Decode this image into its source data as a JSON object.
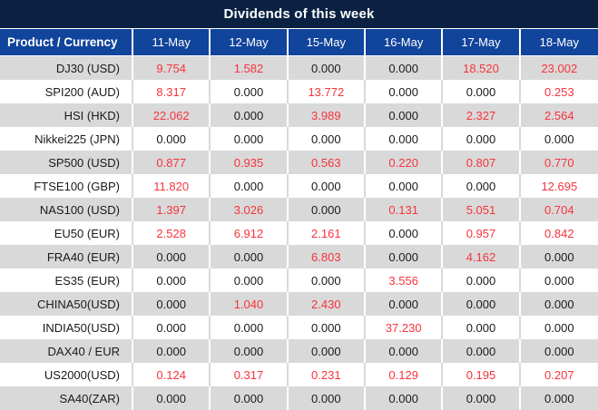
{
  "title": "Dividends of this week",
  "colors": {
    "title_bg": "#0A2142",
    "header_bg": "#11449B",
    "row_alt_bg": "#D9D9D9",
    "value_red": "#F8333C",
    "value_black": "#1A1A1A"
  },
  "chart_data": {
    "type": "table",
    "title": "Dividends of this week",
    "columns": [
      "Product / Currency",
      "11-May",
      "12-May",
      "15-May",
      "16-May",
      "17-May",
      "18-May"
    ],
    "rows": [
      {
        "product": "DJ30 (USD)",
        "values": [
          {
            "v": "9.754",
            "red": true
          },
          {
            "v": "1.582",
            "red": true
          },
          {
            "v": "0.000",
            "red": false
          },
          {
            "v": "0.000",
            "red": false
          },
          {
            "v": "18.520",
            "red": true
          },
          {
            "v": "23.002",
            "red": true
          }
        ]
      },
      {
        "product": "SPI200 (AUD)",
        "values": [
          {
            "v": "8.317",
            "red": true
          },
          {
            "v": "0.000",
            "red": false
          },
          {
            "v": "13.772",
            "red": true
          },
          {
            "v": "0.000",
            "red": false
          },
          {
            "v": "0.000",
            "red": false
          },
          {
            "v": "0.253",
            "red": true
          }
        ]
      },
      {
        "product": "HSI (HKD)",
        "values": [
          {
            "v": "22.062",
            "red": true
          },
          {
            "v": "0.000",
            "red": false
          },
          {
            "v": "3.989",
            "red": true
          },
          {
            "v": "0.000",
            "red": false
          },
          {
            "v": "2.327",
            "red": true
          },
          {
            "v": "2.564",
            "red": true
          }
        ]
      },
      {
        "product": "Nikkei225 (JPN)",
        "values": [
          {
            "v": "0.000",
            "red": false
          },
          {
            "v": "0.000",
            "red": false
          },
          {
            "v": "0.000",
            "red": false
          },
          {
            "v": "0.000",
            "red": false
          },
          {
            "v": "0.000",
            "red": false
          },
          {
            "v": "0.000",
            "red": false
          }
        ]
      },
      {
        "product": "SP500 (USD)",
        "values": [
          {
            "v": "0.877",
            "red": true
          },
          {
            "v": "0.935",
            "red": true
          },
          {
            "v": "0.563",
            "red": true
          },
          {
            "v": "0.220",
            "red": true
          },
          {
            "v": "0.807",
            "red": true
          },
          {
            "v": "0.770",
            "red": true
          }
        ]
      },
      {
        "product": "FTSE100 (GBP)",
        "values": [
          {
            "v": "11.820",
            "red": true
          },
          {
            "v": "0.000",
            "red": false
          },
          {
            "v": "0.000",
            "red": false
          },
          {
            "v": "0.000",
            "red": false
          },
          {
            "v": "0.000",
            "red": false
          },
          {
            "v": "12.695",
            "red": true
          }
        ]
      },
      {
        "product": "NAS100 (USD)",
        "values": [
          {
            "v": "1.397",
            "red": true
          },
          {
            "v": "3.026",
            "red": true
          },
          {
            "v": "0.000",
            "red": false
          },
          {
            "v": "0.131",
            "red": true
          },
          {
            "v": "5.051",
            "red": true
          },
          {
            "v": "0.704",
            "red": true
          }
        ]
      },
      {
        "product": "EU50 (EUR)",
        "values": [
          {
            "v": "2.528",
            "red": true
          },
          {
            "v": "6.912",
            "red": true
          },
          {
            "v": "2.161",
            "red": true
          },
          {
            "v": "0.000",
            "red": false
          },
          {
            "v": "0.957",
            "red": true
          },
          {
            "v": "0.842",
            "red": true
          }
        ]
      },
      {
        "product": "FRA40 (EUR)",
        "values": [
          {
            "v": "0.000",
            "red": false
          },
          {
            "v": "0.000",
            "red": false
          },
          {
            "v": "6.803",
            "red": true
          },
          {
            "v": "0.000",
            "red": false
          },
          {
            "v": "4.162",
            "red": true
          },
          {
            "v": "0.000",
            "red": false
          }
        ]
      },
      {
        "product": "ES35 (EUR)",
        "values": [
          {
            "v": "0.000",
            "red": false
          },
          {
            "v": "0.000",
            "red": false
          },
          {
            "v": "0.000",
            "red": false
          },
          {
            "v": "3.556",
            "red": true
          },
          {
            "v": "0.000",
            "red": false
          },
          {
            "v": "0.000",
            "red": false
          }
        ]
      },
      {
        "product": "CHINA50(USD)",
        "values": [
          {
            "v": "0.000",
            "red": false
          },
          {
            "v": "1.040",
            "red": true
          },
          {
            "v": "2.430",
            "red": true
          },
          {
            "v": "0.000",
            "red": false
          },
          {
            "v": "0.000",
            "red": false
          },
          {
            "v": "0.000",
            "red": false
          }
        ]
      },
      {
        "product": "INDIA50(USD)",
        "values": [
          {
            "v": "0.000",
            "red": false
          },
          {
            "v": "0.000",
            "red": false
          },
          {
            "v": "0.000",
            "red": false
          },
          {
            "v": "37.230",
            "red": true
          },
          {
            "v": "0.000",
            "red": false
          },
          {
            "v": "0.000",
            "red": false
          }
        ]
      },
      {
        "product": "DAX40 / EUR",
        "values": [
          {
            "v": "0.000",
            "red": false
          },
          {
            "v": "0.000",
            "red": false
          },
          {
            "v": "0.000",
            "red": false
          },
          {
            "v": "0.000",
            "red": false
          },
          {
            "v": "0.000",
            "red": false
          },
          {
            "v": "0.000",
            "red": false
          }
        ]
      },
      {
        "product": "US2000(USD)",
        "values": [
          {
            "v": "0.124",
            "red": true
          },
          {
            "v": "0.317",
            "red": true
          },
          {
            "v": "0.231",
            "red": true
          },
          {
            "v": "0.129",
            "red": true
          },
          {
            "v": "0.195",
            "red": true
          },
          {
            "v": "0.207",
            "red": true
          }
        ]
      },
      {
        "product": "SA40(ZAR)",
        "values": [
          {
            "v": "0.000",
            "red": false
          },
          {
            "v": "0.000",
            "red": false
          },
          {
            "v": "0.000",
            "red": false
          },
          {
            "v": "0.000",
            "red": false
          },
          {
            "v": "0.000",
            "red": false
          },
          {
            "v": "0.000",
            "red": false
          }
        ]
      }
    ]
  }
}
